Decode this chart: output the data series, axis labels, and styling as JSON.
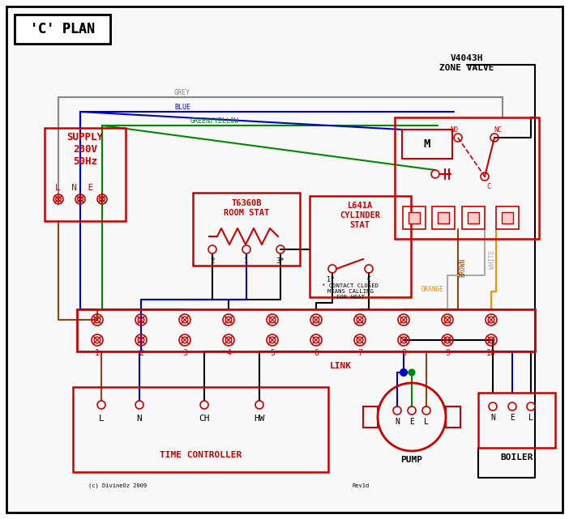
{
  "title": "'C' PLAN",
  "bg_color": "#ffffff",
  "red": "#cc0000",
  "blue": "#0000cc",
  "green": "#008800",
  "grey": "#888888",
  "brown": "#8B4513",
  "orange": "#FF8C00",
  "black": "#000000",
  "white_wire": "#aaaaaa",
  "components": {
    "supply_label": "SUPPLY\n230V\n50Hz",
    "room_stat_label": "T6360B\nROOM STAT",
    "cylinder_stat_label": "L641A\nCYLINDER\nSTAT",
    "zone_valve_label": "V4043H\nZONE VALVE",
    "time_controller_label": "TIME CONTROLLER",
    "pump_label": "PUMP",
    "boiler_label": "BOILER",
    "link_label": "LINK",
    "contact_note": "* CONTACT CLOSED\nMEANS CALLING\nFOR HEAT",
    "copyright": "(c) DivineOz 2009",
    "revision": "Rev1d"
  }
}
